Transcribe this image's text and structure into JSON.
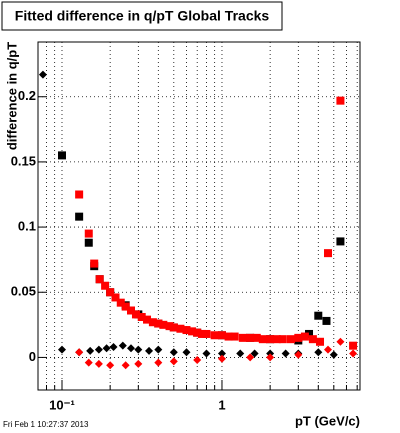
{
  "chart_data": {
    "type": "scatter",
    "title": "Fitted difference in q/pT  Global Tracks",
    "x_label": "pT (GeV/c)",
    "y_label": "difference in q/pT",
    "timestamp": "Fri Feb  1 10:27:37 2013",
    "xlog": true,
    "grid": true,
    "xlim": [
      0.0708,
      7.29
    ],
    "ylim": [
      -0.025,
      0.242
    ],
    "xticks": [
      {
        "value": 0.1,
        "label": "10⁻¹"
      },
      1
    ],
    "xminorticks": [
      0.08,
      0.09,
      0.2,
      0.3,
      0.4,
      0.5,
      0.6,
      0.7,
      0.8,
      0.9,
      2,
      3,
      4,
      5,
      6,
      7
    ],
    "yticks": [
      0,
      0.05,
      0.1,
      0.15,
      0.2
    ],
    "series": [
      {
        "name": "black squares",
        "color": "#000000",
        "marker": "square",
        "x": [
          0.1,
          0.128,
          0.147,
          0.159,
          0.172,
          0.2,
          0.25,
          0.3,
          0.4,
          0.5,
          0.7,
          1.0,
          1.5,
          2.0,
          3.0,
          3.5,
          4.0,
          4.5,
          5.5
        ],
        "values": [
          0.155,
          0.108,
          0.088,
          0.07,
          0.06,
          0.05,
          0.04,
          0.033,
          0.026,
          0.023,
          0.019,
          0.017,
          0.015,
          0.014,
          0.013,
          0.018,
          0.032,
          0.028,
          0.089
        ]
      },
      {
        "name": "red squares",
        "color": "#ff0000",
        "marker": "square",
        "x": [
          0.128,
          0.147,
          0.159,
          0.172,
          0.186,
          0.2,
          0.216,
          0.233,
          0.25,
          0.27,
          0.29,
          0.315,
          0.34,
          0.37,
          0.4,
          0.43,
          0.47,
          0.5,
          0.55,
          0.6,
          0.65,
          0.7,
          0.75,
          0.8,
          0.9,
          1.0,
          1.1,
          1.2,
          1.35,
          1.5,
          1.65,
          1.8,
          2.0,
          2.2,
          2.4,
          2.7,
          3.0,
          3.3,
          3.7,
          4.1,
          4.6,
          5.5,
          6.6
        ],
        "values": [
          0.125,
          0.095,
          0.072,
          0.06,
          0.055,
          0.05,
          0.046,
          0.042,
          0.039,
          0.036,
          0.033,
          0.031,
          0.029,
          0.027,
          0.026,
          0.025,
          0.024,
          0.023,
          0.022,
          0.021,
          0.02,
          0.019,
          0.018,
          0.018,
          0.017,
          0.017,
          0.016,
          0.016,
          0.015,
          0.015,
          0.015,
          0.014,
          0.014,
          0.014,
          0.014,
          0.014,
          0.015,
          0.016,
          0.014,
          0.012,
          0.08,
          0.197,
          0.009
        ]
      },
      {
        "name": "black diamonds",
        "color": "#000000",
        "marker": "diamond",
        "x": [
          0.076,
          0.1,
          0.128,
          0.15,
          0.17,
          0.19,
          0.21,
          0.24,
          0.27,
          0.3,
          0.35,
          0.4,
          0.5,
          0.6,
          0.8,
          1.0,
          1.3,
          1.6,
          2.0,
          2.5,
          3.0,
          4.0,
          5.0
        ],
        "values": [
          0.217,
          0.006,
          0.004,
          0.005,
          0.006,
          0.007,
          0.008,
          0.009,
          0.007,
          0.006,
          0.005,
          0.006,
          0.004,
          0.004,
          0.003,
          0.003,
          0.003,
          0.003,
          0.003,
          0.003,
          0.003,
          0.004,
          0.002
        ]
      },
      {
        "name": "red diamonds",
        "color": "#ff0000",
        "marker": "diamond",
        "x": [
          0.128,
          0.147,
          0.17,
          0.2,
          0.25,
          0.3,
          0.4,
          0.5,
          0.7,
          1.0,
          1.5,
          2.0,
          3.0,
          4.6,
          5.5,
          6.6
        ],
        "values": [
          0.004,
          -0.004,
          -0.005,
          -0.006,
          -0.006,
          -0.005,
          -0.004,
          -0.003,
          -0.002,
          -0.001,
          0.0,
          0.0,
          0.002,
          0.006,
          0.012,
          0.003
        ]
      }
    ]
  }
}
